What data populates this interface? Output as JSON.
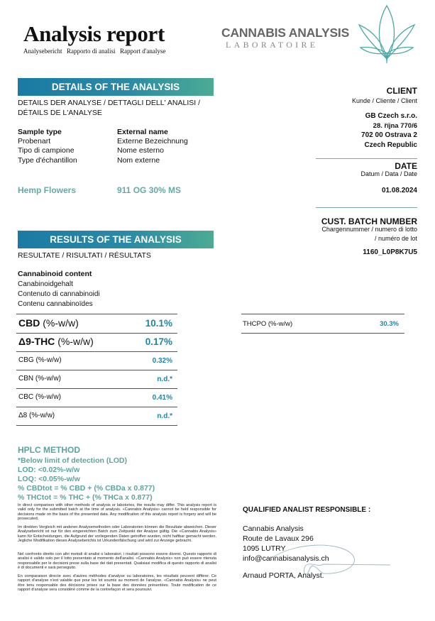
{
  "header": {
    "title": "Analysis report",
    "subtitles": [
      "Analysebericht",
      "Rapporto di analisi",
      "Rapport d'analyse"
    ],
    "logo": {
      "name": "CANNABIS ANALYSIS",
      "sub": "LABORATOIRE",
      "icon": "cannabis-leaf-icon",
      "color": "#4aa9a6"
    }
  },
  "details": {
    "banner": "DETAILS OF THE ANALYSIS",
    "subtitle_1": "DETAILS DER ANALYSE / DETTAGLI DELL' ANALISI /",
    "subtitle_2": "DÉTAILS DE L'ANALYSE",
    "sample_type": {
      "label": "Sample type",
      "translations": [
        "Probenart",
        "Tipo di campione",
        "Type d'échantillon"
      ],
      "value": "Hemp Flowers"
    },
    "external_name": {
      "label": "External name",
      "translations": [
        "Externe Bezeichnung",
        "Nome esterno",
        "Nom externe"
      ],
      "value": "911 OG 30% MS"
    }
  },
  "results": {
    "banner": "RESULTS OF THE ANALYSIS",
    "subtitle": "RESULTATE / RISULTATI / RÉSULTATS",
    "content_label": "Cannabinoid content",
    "content_translations": [
      "Canabinoidgehalt",
      "Contenuto di cannabinoidi",
      "Contenu cannabinoïdes"
    ],
    "rows": [
      {
        "name": "CBD",
        "unit": "(%-w/w)",
        "value": "10.1%"
      },
      {
        "name": "Δ9-THC",
        "unit": "(%-w/w)",
        "value": "0.17%"
      },
      {
        "name": "CBG",
        "unit": "(%-w/w)",
        "value": "0.32%"
      },
      {
        "name": "CBN",
        "unit": "(%-w/w)",
        "value": "n.d.*"
      },
      {
        "name": "CBC",
        "unit": "(%-w/w)",
        "value": "0.41%"
      },
      {
        "name": "Δ8",
        "unit": "(%-w/w)",
        "value": "n.d.*"
      }
    ],
    "extra_row": {
      "label": "THCPO (%-w/w)",
      "value": "30.3%"
    }
  },
  "method": {
    "title": "HPLC METHOD",
    "lines": [
      "*Below limit of detection (LOD)",
      "LOD: <0.02%-w/w",
      "LOQ: <0.05%-w/w",
      "% CBDtot = % CBD + (% CBDa x 0.877)",
      "% THCtot = % THC + (% THCa x 0.877)"
    ]
  },
  "disclaimer": [
    "In direct comparison with other methods of analysis or labotories, the results may differ. This analysis report is valid only for the submitted batch at the time of analysis. «Cannabis Analysis» cannot be held responsible for decisions made on the basis of the presented data. Any modification of this analysis report is forgery and will be prosecuted.",
    "Im direkten Vergleich mit anderen Analysemethoden oder Laboratorien können die Resultate abweichen. Dieser Analysebericht ist nur für den eingereichten Batch zum Zeitpunkt der Analyse gültig. Die «Cannabis Analysis» kann für Entscheidungen, die Aufgrund der vorliegenden Daten getroffen wurden, nicht haftbar gemacht werden. Jegliche Modifikation dieses Analyseberichts ist Urkundenfälschung und wird zur Anzeige gebracht.",
    "Nel confronto diretto con altri metodi di analisi o laboratori, i risultati possono essere diversi. Questo rapporto di analisi è valido solo per il lotto presentato al momento dell'analisi. «Cannabis Analysis» non può essere ritenuta responsabile per le decisioni prese sulla base dei dati presentati. Qualsiasi modifica di questo rapporto di analisi è di documenti e sarà perseguito.",
    "En comparaison directe avec d'autres méthodes d'analyse ou laboratoires, les résultats peuvent différer. Ce rapport d'analyse n'est valable que pour les lot soumis au moment de l'analyse. «Cannabis Analysis» ne peut être tenu responsable des décisions prises sur la base des données présentées. Toute modification de ce rapport d'analyse sera considéré comme de la contrefaçon et sera poursuivi."
  ],
  "client": {
    "title": "CLIENT",
    "subtitle": "Kunde / Cliente / Client",
    "lines": [
      "GB Czech s.r.o.",
      "28. října 770/6",
      "702 00 Ostrava 2",
      "Czech Republic"
    ]
  },
  "date": {
    "title": "DATE",
    "subtitle": "Datum / Data / Date",
    "value": "01.08.2024"
  },
  "batch": {
    "title": "CUST. BATCH NUMBER",
    "subtitle_1": "Chargennummer / numero di lotto",
    "subtitle_2": "/ numéro de lot",
    "value": "1160_L0P8K7U5"
  },
  "analyst": {
    "title": "QUALIFIED ANALIST RESPONSIBLE :",
    "lines": [
      "Cannabis Analysis",
      "Route de Lavaux 296",
      "1095 LUTRY",
      "info@cannabisanalysis.ch"
    ],
    "signature_name": "Arnaud PORTA, Analyst."
  }
}
